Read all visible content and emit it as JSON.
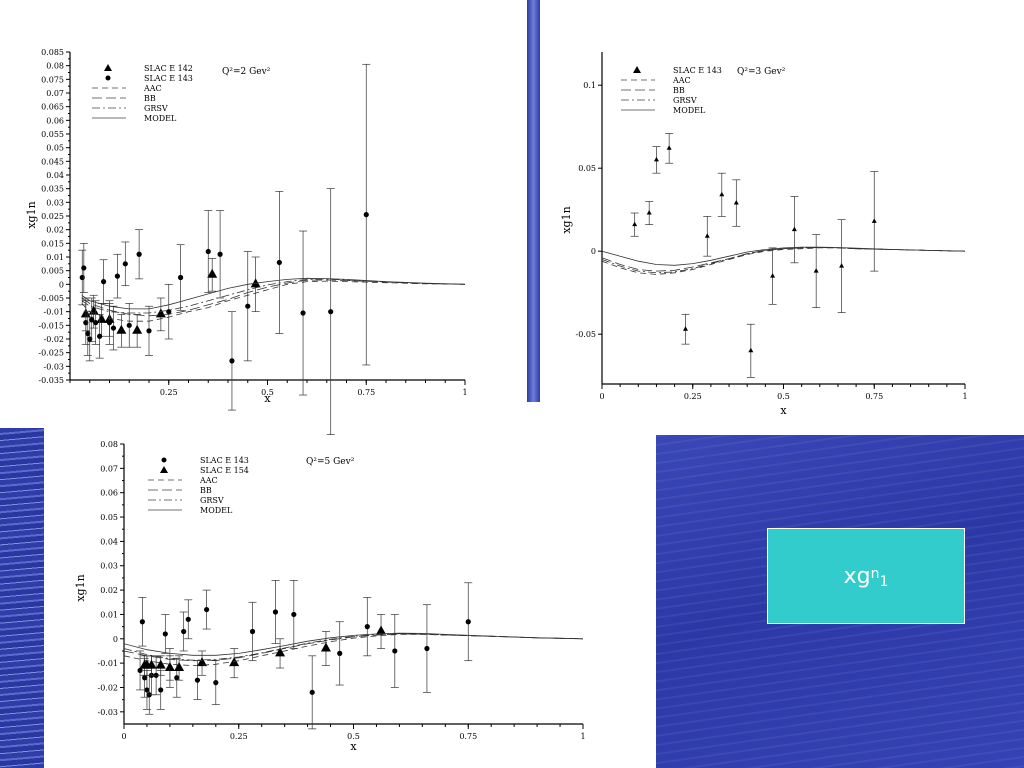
{
  "colors": {
    "background_blue": "#2f3cab",
    "accent_box": "#33cccc",
    "box_text": "#ffffff"
  },
  "label_box": {
    "base": "xg",
    "sup": "n",
    "sub": "1"
  },
  "chart_data": [
    {
      "type": "scatter",
      "title": "Q²=2  Gev²",
      "xlabel": "x",
      "ylabel": "xg1n",
      "xlim": [
        0,
        1
      ],
      "ylim": [
        -0.035,
        0.085
      ],
      "x_ticks": [
        "0.25",
        "0.5",
        "0.75",
        "1"
      ],
      "x_tick_values": [
        0.25,
        0.5,
        0.75,
        1
      ],
      "y_ticks": [
        "0.085",
        "0.08",
        "0.075",
        "0.07",
        "0.065",
        "0.06",
        "0.055",
        "0.05",
        "0.045",
        "0.04",
        "0.035",
        "0.03",
        "0.025",
        "0.02",
        "0.015",
        "0.01",
        "0.005",
        "0",
        "-0.005",
        "-0.01",
        "-0.015",
        "-0.02",
        "-0.025",
        "-0.03",
        "-0.035"
      ],
      "y_tick_values": [
        0.085,
        0.08,
        0.075,
        0.07,
        0.065,
        0.06,
        0.055,
        0.05,
        0.045,
        0.04,
        0.035,
        0.03,
        0.025,
        0.02,
        0.015,
        0.01,
        0.005,
        0,
        -0.005,
        -0.01,
        -0.015,
        -0.02,
        -0.025,
        -0.03,
        -0.035
      ],
      "legend": {
        "position": "top-left",
        "entries": [
          {
            "label": "SLAC E 142",
            "symbol": "triangle"
          },
          {
            "label": "SLAC E 143",
            "symbol": "circle"
          },
          {
            "label": "AAC",
            "symbol": "dash"
          },
          {
            "label": "BB",
            "symbol": "longdash"
          },
          {
            "label": "GRSV",
            "symbol": "dashdot"
          },
          {
            "label": "MODEL",
            "symbol": "solid"
          }
        ]
      },
      "series": [
        {
          "name": "SLAC E 142",
          "marker": "triangle",
          "x": [
            0.04,
            0.06,
            0.08,
            0.1,
            0.13,
            0.17,
            0.23,
            0.36,
            0.47
          ],
          "y": [
            -0.011,
            -0.01,
            -0.013,
            -0.013,
            -0.017,
            -0.017,
            -0.011,
            0.0035,
            0.0
          ],
          "err": [
            0.006,
            0.006,
            0.006,
            0.006,
            0.006,
            0.006,
            0.006,
            0.006,
            0.01
          ]
        },
        {
          "name": "SLAC E 143",
          "marker": "circle",
          "x": [
            0.031,
            0.035,
            0.04,
            0.045,
            0.05,
            0.055,
            0.065,
            0.075,
            0.085,
            0.1,
            0.11,
            0.12,
            0.14,
            0.15,
            0.175,
            0.2,
            0.25,
            0.28,
            0.35,
            0.38,
            0.41,
            0.45,
            0.53,
            0.59,
            0.66,
            0.75
          ],
          "y": [
            0.0025,
            0.006,
            -0.014,
            -0.018,
            -0.02,
            -0.013,
            -0.014,
            -0.019,
            0.001,
            -0.014,
            -0.016,
            0.003,
            0.0075,
            -0.015,
            0.011,
            -0.017,
            -0.01,
            0.0025,
            0.012,
            0.011,
            -0.028,
            -0.008,
            0.008,
            -0.0105,
            -0.01,
            0.0255
          ],
          "err": [
            0.01,
            0.009,
            0.008,
            0.008,
            0.008,
            0.008,
            0.008,
            0.008,
            0.008,
            0.008,
            0.008,
            0.008,
            0.008,
            0.008,
            0.009,
            0.009,
            0.01,
            0.012,
            0.015,
            0.016,
            0.018,
            0.02,
            0.026,
            0.03,
            0.045,
            0.055
          ]
        },
        {
          "name": "AAC",
          "style": "dash",
          "x": [
            0.03,
            0.05,
            0.1,
            0.15,
            0.2,
            0.25,
            0.3,
            0.35,
            0.4,
            0.45,
            0.5,
            0.55,
            0.6,
            0.65,
            0.7,
            0.8,
            0.9,
            1.0
          ],
          "y": [
            -0.007,
            -0.01,
            -0.0125,
            -0.0135,
            -0.0135,
            -0.012,
            -0.01,
            -0.0085,
            -0.006,
            -0.004,
            -0.002,
            0.0,
            0.001,
            0.0012,
            0.001,
            0.0006,
            0.0002,
            0.0
          ]
        },
        {
          "name": "BB",
          "style": "longdash",
          "x": [
            0.03,
            0.05,
            0.1,
            0.15,
            0.2,
            0.25,
            0.3,
            0.35,
            0.4,
            0.45,
            0.5,
            0.55,
            0.6,
            0.65,
            0.7,
            0.8,
            0.9,
            1.0
          ],
          "y": [
            -0.005,
            -0.007,
            -0.0095,
            -0.011,
            -0.0115,
            -0.011,
            -0.0095,
            -0.0075,
            -0.0055,
            -0.003,
            -0.001,
            0.0005,
            0.0015,
            0.0016,
            0.0014,
            0.0008,
            0.0003,
            0.0
          ]
        },
        {
          "name": "GRSV",
          "style": "dashdot",
          "x": [
            0.03,
            0.05,
            0.1,
            0.15,
            0.2,
            0.25,
            0.3,
            0.35,
            0.4,
            0.45,
            0.5,
            0.55,
            0.6,
            0.65,
            0.7,
            0.8,
            0.9,
            1.0
          ],
          "y": [
            -0.006,
            -0.008,
            -0.01,
            -0.0105,
            -0.0105,
            -0.0095,
            -0.008,
            -0.006,
            -0.004,
            -0.002,
            -0.0002,
            0.001,
            0.0018,
            0.0019,
            0.0016,
            0.0009,
            0.0003,
            0.0
          ]
        },
        {
          "name": "MODEL",
          "style": "solid",
          "x": [
            0.03,
            0.05,
            0.1,
            0.15,
            0.2,
            0.25,
            0.3,
            0.35,
            0.4,
            0.45,
            0.5,
            0.55,
            0.6,
            0.65,
            0.7,
            0.8,
            0.9,
            1.0
          ],
          "y": [
            -0.004,
            -0.006,
            -0.008,
            -0.009,
            -0.009,
            -0.0075,
            -0.0055,
            -0.0035,
            -0.0015,
            0.0,
            0.001,
            0.0018,
            0.0022,
            0.0021,
            0.0018,
            0.001,
            0.0004,
            0.0
          ]
        }
      ]
    },
    {
      "type": "scatter",
      "title": "Q²=3  Gev²",
      "xlabel": "x",
      "ylabel": "xg1n",
      "xlim": [
        0,
        1
      ],
      "ylim": [
        -0.08,
        0.12
      ],
      "x_ticks": [
        "0",
        "0.25",
        "0.5",
        "0.75",
        "1"
      ],
      "x_tick_values": [
        0,
        0.25,
        0.5,
        0.75,
        1
      ],
      "y_ticks": [
        "0.1",
        "0.05",
        "0",
        "-0.05"
      ],
      "y_tick_values": [
        0.1,
        0.05,
        0,
        -0.05
      ],
      "legend": {
        "position": "top-left",
        "entries": [
          {
            "label": "SLAC E 143",
            "symbol": "triangle"
          },
          {
            "label": "AAC",
            "symbol": "dash"
          },
          {
            "label": "BB",
            "symbol": "longdash"
          },
          {
            "label": "GRSV",
            "symbol": "dashdot"
          },
          {
            "label": "MODEL",
            "symbol": "solid"
          }
        ]
      },
      "series": [
        {
          "name": "SLAC E 143",
          "marker": "triangle-small",
          "x": [
            0.09,
            0.13,
            0.15,
            0.185,
            0.23,
            0.29,
            0.33,
            0.37,
            0.41,
            0.47,
            0.53,
            0.59,
            0.66,
            0.75
          ],
          "y": [
            0.016,
            0.023,
            0.055,
            0.062,
            -0.047,
            0.009,
            0.034,
            0.029,
            -0.06,
            -0.015,
            0.013,
            -0.012,
            -0.009,
            0.018
          ],
          "err": [
            0.007,
            0.007,
            0.008,
            0.009,
            0.009,
            0.012,
            0.013,
            0.014,
            0.016,
            0.017,
            0.02,
            0.022,
            0.028,
            0.03
          ]
        },
        {
          "name": "AAC",
          "style": "dash",
          "x": [
            0.0,
            0.05,
            0.1,
            0.15,
            0.2,
            0.25,
            0.3,
            0.35,
            0.4,
            0.45,
            0.5,
            0.55,
            0.6,
            0.65,
            0.7,
            0.8,
            0.9,
            1.0
          ],
          "y": [
            -0.006,
            -0.01,
            -0.013,
            -0.014,
            -0.013,
            -0.011,
            -0.008,
            -0.005,
            -0.002,
            0.0,
            0.001,
            0.0015,
            0.002,
            0.002,
            0.0015,
            0.001,
            0.0005,
            0.0
          ]
        },
        {
          "name": "BB",
          "style": "longdash",
          "x": [
            0.0,
            0.05,
            0.1,
            0.15,
            0.2,
            0.25,
            0.3,
            0.35,
            0.4,
            0.45,
            0.5,
            0.55,
            0.6,
            0.65,
            0.7,
            0.8,
            0.9,
            1.0
          ],
          "y": [
            -0.004,
            -0.008,
            -0.011,
            -0.012,
            -0.0115,
            -0.0095,
            -0.007,
            -0.0045,
            -0.0015,
            0.0005,
            0.0015,
            0.002,
            0.0022,
            0.002,
            0.0015,
            0.001,
            0.0005,
            0.0
          ]
        },
        {
          "name": "GRSV",
          "style": "dashdot",
          "x": [
            0.0,
            0.05,
            0.1,
            0.15,
            0.2,
            0.25,
            0.3,
            0.35,
            0.4,
            0.45,
            0.5,
            0.55,
            0.6,
            0.65,
            0.7,
            0.8,
            0.9,
            1.0
          ],
          "y": [
            -0.005,
            -0.009,
            -0.012,
            -0.013,
            -0.0125,
            -0.0105,
            -0.0075,
            -0.0045,
            -0.0015,
            0.0005,
            0.0015,
            0.002,
            0.0022,
            0.002,
            0.0015,
            0.001,
            0.0005,
            0.0
          ]
        },
        {
          "name": "MODEL",
          "style": "solid",
          "x": [
            0.0,
            0.05,
            0.1,
            0.15,
            0.2,
            0.25,
            0.3,
            0.35,
            0.4,
            0.45,
            0.5,
            0.55,
            0.6,
            0.65,
            0.7,
            0.8,
            0.9,
            1.0
          ],
          "y": [
            0.0,
            -0.003,
            -0.006,
            -0.008,
            -0.0085,
            -0.0075,
            -0.0055,
            -0.003,
            -0.0005,
            0.001,
            0.002,
            0.0025,
            0.0025,
            0.0022,
            0.0018,
            0.001,
            0.0005,
            0.0
          ]
        }
      ]
    },
    {
      "type": "scatter",
      "title": "Q²=5  Gev²",
      "xlabel": "x",
      "ylabel": "xg1n",
      "xlim": [
        0,
        1
      ],
      "ylim": [
        -0.035,
        0.08
      ],
      "x_ticks": [
        "0",
        "0.25",
        "0.5",
        "0.75",
        "1"
      ],
      "x_tick_values": [
        0,
        0.25,
        0.5,
        0.75,
        1
      ],
      "y_ticks": [
        "0.08",
        "0.07",
        "0.06",
        "0.05",
        "0.04",
        "0.03",
        "0.02",
        "0.01",
        "0",
        "-0.01",
        "-0.02",
        "-0.03"
      ],
      "y_tick_values": [
        0.08,
        0.07,
        0.06,
        0.05,
        0.04,
        0.03,
        0.02,
        0.01,
        0,
        -0.01,
        -0.02,
        -0.03
      ],
      "legend": {
        "position": "top-left",
        "entries": [
          {
            "label": "SLAC E 143",
            "symbol": "circle"
          },
          {
            "label": "SLAC E 154",
            "symbol": "triangle"
          },
          {
            "label": "AAC",
            "symbol": "dash"
          },
          {
            "label": "BB",
            "symbol": "longdash"
          },
          {
            "label": "GRSV",
            "symbol": "dashdot"
          },
          {
            "label": "MODEL",
            "symbol": "solid"
          }
        ]
      },
      "series": [
        {
          "name": "SLAC E 143",
          "marker": "circle",
          "x": [
            0.035,
            0.04,
            0.045,
            0.05,
            0.055,
            0.06,
            0.07,
            0.08,
            0.09,
            0.1,
            0.115,
            0.13,
            0.14,
            0.16,
            0.18,
            0.2,
            0.28,
            0.33,
            0.37,
            0.41,
            0.47,
            0.53,
            0.59,
            0.66,
            0.75
          ],
          "y": [
            -0.013,
            0.007,
            -0.016,
            -0.021,
            -0.023,
            -0.015,
            -0.015,
            -0.021,
            0.002,
            -0.012,
            -0.016,
            0.003,
            0.008,
            -0.017,
            0.012,
            -0.018,
            0.003,
            0.011,
            0.01,
            -0.022,
            -0.006,
            0.005,
            -0.005,
            -0.004,
            0.007
          ],
          "err": [
            0.008,
            0.01,
            0.008,
            0.008,
            0.008,
            0.008,
            0.008,
            0.008,
            0.008,
            0.008,
            0.008,
            0.008,
            0.008,
            0.008,
            0.008,
            0.009,
            0.012,
            0.013,
            0.014,
            0.015,
            0.013,
            0.012,
            0.015,
            0.018,
            0.016
          ]
        },
        {
          "name": "SLAC E 154",
          "marker": "triangle",
          "x": [
            0.045,
            0.05,
            0.06,
            0.08,
            0.1,
            0.12,
            0.17,
            0.24,
            0.34,
            0.44,
            0.56
          ],
          "y": [
            -0.011,
            -0.011,
            -0.011,
            -0.011,
            -0.012,
            -0.012,
            -0.01,
            -0.01,
            -0.006,
            -0.004,
            0.003
          ],
          "err": [
            0.004,
            0.004,
            0.004,
            0.004,
            0.005,
            0.005,
            0.005,
            0.006,
            0.006,
            0.007,
            0.007
          ]
        },
        {
          "name": "AAC",
          "style": "dash",
          "x": [
            0.0,
            0.05,
            0.1,
            0.15,
            0.2,
            0.25,
            0.3,
            0.35,
            0.4,
            0.45,
            0.5,
            0.55,
            0.6,
            0.65,
            0.7,
            0.8,
            0.9,
            1.0
          ],
          "y": [
            -0.007,
            -0.009,
            -0.0105,
            -0.011,
            -0.0105,
            -0.009,
            -0.007,
            -0.005,
            -0.003,
            -0.0012,
            0.0003,
            0.0012,
            0.0018,
            0.0018,
            0.0015,
            0.001,
            0.0004,
            0.0
          ]
        },
        {
          "name": "BB",
          "style": "longdash",
          "x": [
            0.0,
            0.05,
            0.1,
            0.15,
            0.2,
            0.25,
            0.3,
            0.35,
            0.4,
            0.45,
            0.5,
            0.55,
            0.6,
            0.65,
            0.7,
            0.8,
            0.9,
            1.0
          ],
          "y": [
            -0.005,
            -0.007,
            -0.0085,
            -0.009,
            -0.0088,
            -0.0078,
            -0.006,
            -0.004,
            -0.002,
            -0.0005,
            0.0008,
            0.0015,
            0.002,
            0.0019,
            0.0016,
            0.001,
            0.0004,
            0.0
          ]
        },
        {
          "name": "GRSV",
          "style": "dashdot",
          "x": [
            0.0,
            0.05,
            0.1,
            0.15,
            0.2,
            0.25,
            0.3,
            0.35,
            0.4,
            0.45,
            0.5,
            0.55,
            0.6,
            0.65,
            0.7,
            0.8,
            0.9,
            1.0
          ],
          "y": [
            -0.004,
            -0.0065,
            -0.0082,
            -0.0088,
            -0.0085,
            -0.0075,
            -0.0058,
            -0.0038,
            -0.0018,
            -0.0002,
            0.001,
            0.0017,
            0.0021,
            0.002,
            0.0016,
            0.001,
            0.0004,
            0.0
          ]
        },
        {
          "name": "MODEL",
          "style": "solid",
          "x": [
            0.0,
            0.05,
            0.1,
            0.15,
            0.2,
            0.25,
            0.3,
            0.35,
            0.4,
            0.45,
            0.5,
            0.55,
            0.6,
            0.65,
            0.7,
            0.8,
            0.9,
            1.0
          ],
          "y": [
            -0.002,
            -0.0045,
            -0.006,
            -0.0068,
            -0.0068,
            -0.006,
            -0.0045,
            -0.0028,
            -0.001,
            0.0004,
            0.0014,
            0.002,
            0.0023,
            0.0022,
            0.0018,
            0.0011,
            0.0004,
            0.0
          ]
        }
      ]
    }
  ]
}
